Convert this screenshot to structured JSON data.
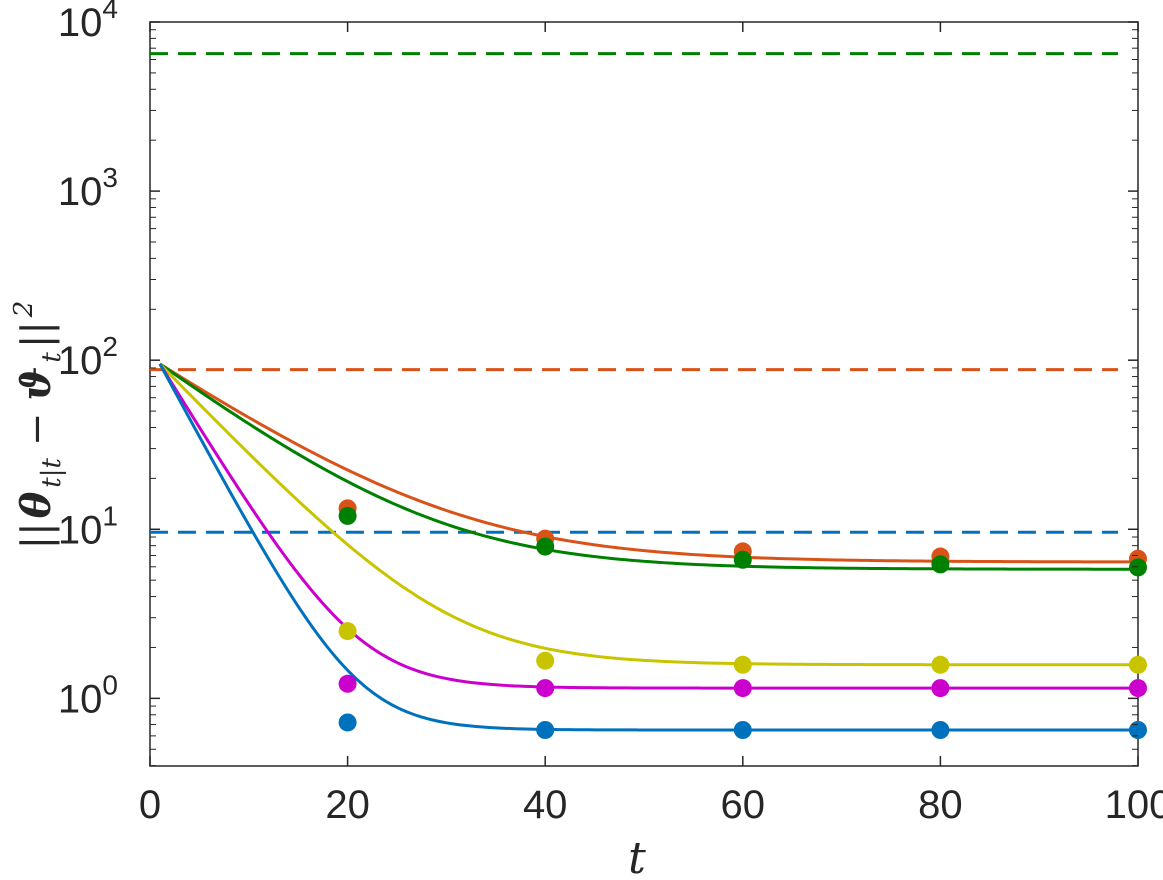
{
  "chart_data": {
    "type": "line",
    "title": "",
    "xlabel": "t",
    "ylabel": "||θ_{t|t} − ϑ_t||²",
    "ylabel_parts": {
      "bars_open": "||",
      "theta": "θ",
      "theta_sub": "t|t",
      "minus": "−",
      "vartheta": "ϑ",
      "vartheta_sub": "t",
      "bars_close": "||",
      "power": "2"
    },
    "xlim": [
      0,
      100
    ],
    "ylim_log10": [
      -0.4,
      4.0
    ],
    "yscale": "log",
    "grid": false,
    "legend": "none",
    "x_ticks": [
      {
        "value": 0,
        "label": "0"
      },
      {
        "value": 20,
        "label": "20"
      },
      {
        "value": 40,
        "label": "40"
      },
      {
        "value": 60,
        "label": "60"
      },
      {
        "value": 80,
        "label": "80"
      },
      {
        "value": 100,
        "label": "100"
      }
    ],
    "y_ticks": [
      {
        "exp": 0,
        "base": "10",
        "power": "0"
      },
      {
        "exp": 1,
        "base": "10",
        "power": "1"
      },
      {
        "exp": 2,
        "base": "10",
        "power": "2"
      },
      {
        "exp": 3,
        "base": "10",
        "power": "3"
      },
      {
        "exp": 4,
        "base": "10",
        "power": "4"
      }
    ],
    "reference_lines": [
      {
        "color": "#008000",
        "y": 6500
      },
      {
        "color": "#D95319",
        "y": 88
      },
      {
        "color": "#0072BD",
        "y": 9.6
      }
    ],
    "marker_x": [
      20,
      40,
      60,
      80,
      100
    ],
    "series": [
      {
        "color": "#D95319",
        "start": 95,
        "k": 0.09,
        "asym": 6.4,
        "markers": [
          13.3,
          8.8,
          7.4,
          6.9,
          6.7
        ]
      },
      {
        "color": "#008000",
        "start": 95,
        "k": 0.1,
        "asym": 5.8,
        "markers": [
          12.0,
          7.9,
          6.6,
          6.2,
          5.95
        ]
      },
      {
        "color": "#C8C400",
        "start": 95,
        "k": 0.14,
        "asym": 1.58,
        "markers": [
          2.5,
          1.67,
          1.58,
          1.58,
          1.58
        ]
      },
      {
        "color": "#CC00CC",
        "start": 95,
        "k": 0.22,
        "asym": 1.15,
        "markers": [
          1.22,
          1.15,
          1.15,
          1.15,
          1.15
        ]
      },
      {
        "color": "#0072BD",
        "start": 95,
        "k": 0.25,
        "asym": 0.65,
        "markers": [
          0.72,
          0.65,
          0.65,
          0.65,
          0.65
        ]
      }
    ]
  }
}
